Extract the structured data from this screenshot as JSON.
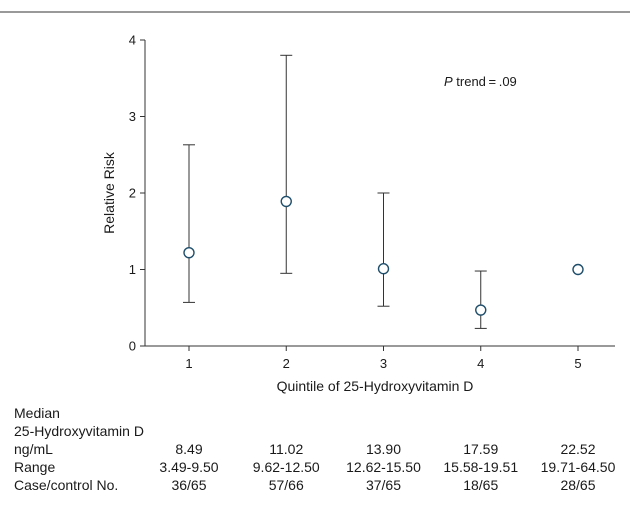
{
  "chart_data": {
    "type": "scatter",
    "subtype": "point-with-error-bars",
    "categories": [
      "1",
      "2",
      "3",
      "4",
      "5"
    ],
    "series": [
      {
        "values": [
          1.22,
          1.89,
          1.01,
          0.47,
          1.0
        ],
        "ci_lower": [
          0.57,
          0.95,
          0.52,
          0.23,
          null
        ],
        "ci_upper": [
          2.63,
          3.8,
          2.0,
          0.98,
          null
        ]
      }
    ],
    "xlabel": "Quintile of 25-Hydroxyvitamin D",
    "ylabel": "Relative Risk",
    "ylim": [
      0,
      4
    ],
    "yticks": [
      "0",
      "1",
      "2",
      "3",
      "4"
    ],
    "annotation": {
      "p_italic": "P",
      "rest": " trend = .09"
    },
    "grid": false,
    "legend": "none"
  },
  "table": {
    "median_label_1": "Median",
    "median_label_2": "25-Hydroxyvitamin D",
    "median_label_3": "ng/mL",
    "median_values": [
      "8.49",
      "11.02",
      "13.90",
      "17.59",
      "22.52"
    ],
    "range_label": "Range",
    "range_values": [
      "3.49-9.50",
      "9.62-12.50",
      "12.62-15.50",
      "15.58-19.51",
      "19.71-64.50"
    ],
    "cases_label": "Case/control No.",
    "cases_values": [
      "36/65",
      "57/66",
      "37/65",
      "18/65",
      "28/65"
    ]
  }
}
